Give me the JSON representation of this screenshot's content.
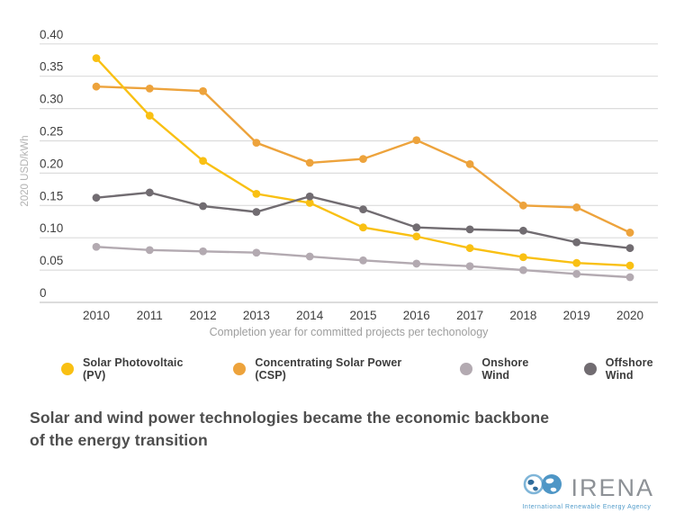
{
  "chart_data": {
    "type": "line",
    "title": "",
    "x": [
      2010,
      2011,
      2012,
      2013,
      2014,
      2015,
      2016,
      2017,
      2018,
      2019,
      2020
    ],
    "xlabel": "Completion year for committed projects per techonology",
    "ylabel": "2020 USD/kWh",
    "ylim": [
      0,
      0.4
    ],
    "yticks": [
      0.4,
      0.35,
      0.3,
      0.25,
      0.2,
      0.15,
      0.1,
      0.05,
      0
    ],
    "grid": true,
    "legend_position": "bottom",
    "series": [
      {
        "name": "Concentrating Solar Power (CSP)",
        "color": "#EDA33C",
        "values": [
          0.334,
          0.331,
          0.327,
          0.247,
          0.216,
          0.222,
          0.251,
          0.214,
          0.15,
          0.147,
          0.108
        ]
      },
      {
        "name": "Solar Photovoltaic (PV)",
        "color": "#F9C013",
        "values": [
          0.378,
          0.289,
          0.219,
          0.168,
          0.154,
          0.116,
          0.102,
          0.084,
          0.07,
          0.061,
          0.057
        ]
      },
      {
        "name": "Onshore Wind",
        "color": "#B3AAB1",
        "values": [
          0.086,
          0.081,
          0.079,
          0.077,
          0.071,
          0.065,
          0.06,
          0.056,
          0.05,
          0.044,
          0.039
        ]
      },
      {
        "name": "Offshore Wind",
        "color": "#716C71",
        "values": [
          0.162,
          0.17,
          0.149,
          0.14,
          0.164,
          0.144,
          0.116,
          0.113,
          0.111,
          0.093,
          0.084
        ]
      }
    ],
    "legend_order": [
      "Solar Photovoltaic (PV)",
      "Concentrating Solar Power (CSP)",
      "Onshore Wind",
      "Offshore Wind"
    ]
  },
  "headline": {
    "line1": "Solar and wind power technologies became the economic backbone",
    "line2": "of the energy transition"
  },
  "logo": {
    "name": "IRENA",
    "tagline": "International Renewable Energy Agency"
  },
  "colors": {
    "gridline": "#dcdcdc",
    "axis_line": "#c6c6c6",
    "tick_label": "#3f3f3f",
    "axis_title": "#b3b3b3",
    "subtitle": "#9e9e9e",
    "headline": "#4e4e4e",
    "logo_blue": "#4e96c6",
    "logo_blue_dark": "#2f6c9c",
    "logo_text": "#8d9196"
  }
}
